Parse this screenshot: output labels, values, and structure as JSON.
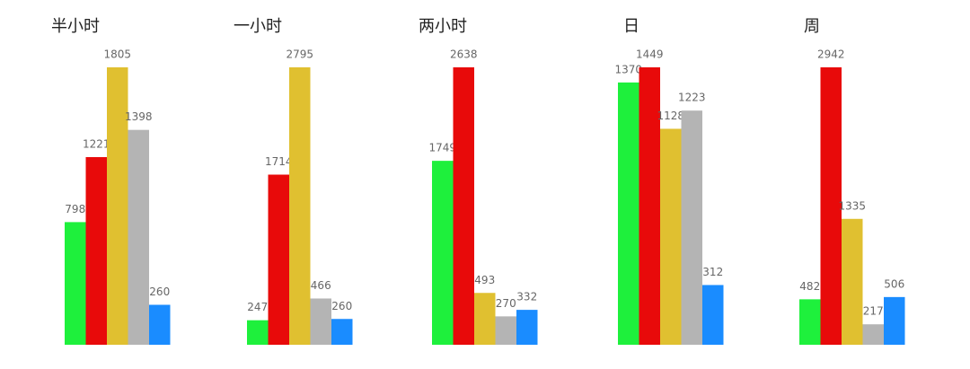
{
  "chart_data": [
    {
      "type": "bar",
      "title": "半小时",
      "values": [
        798,
        1221,
        1805,
        1398,
        260
      ],
      "colors": [
        "#1ef03c",
        "#e80a0a",
        "#e0c030",
        "#b4b4b4",
        "#1a8cff"
      ],
      "ylim": [
        0,
        1805
      ]
    },
    {
      "type": "bar",
      "title": "一小时",
      "values": [
        247,
        1714,
        2795,
        466,
        260
      ],
      "colors": [
        "#1ef03c",
        "#e80a0a",
        "#e0c030",
        "#b4b4b4",
        "#1a8cff"
      ],
      "ylim": [
        0,
        2795
      ]
    },
    {
      "type": "bar",
      "title": "两小时",
      "values": [
        1749,
        2638,
        493,
        270,
        332
      ],
      "colors": [
        "#1ef03c",
        "#e80a0a",
        "#e0c030",
        "#b4b4b4",
        "#1a8cff"
      ],
      "ylim": [
        0,
        2638
      ]
    },
    {
      "type": "bar",
      "title": "日",
      "values": [
        1370,
        1449,
        1128,
        1223,
        312
      ],
      "colors": [
        "#1ef03c",
        "#e80a0a",
        "#e0c030",
        "#b4b4b4",
        "#1a8cff"
      ],
      "ylim": [
        0,
        1449
      ]
    },
    {
      "type": "bar",
      "title": "周",
      "values": [
        482,
        2942,
        1335,
        217,
        506
      ],
      "colors": [
        "#1ef03c",
        "#e80a0a",
        "#e0c030",
        "#b4b4b4",
        "#1a8cff"
      ],
      "ylim": [
        0,
        2942
      ]
    }
  ]
}
